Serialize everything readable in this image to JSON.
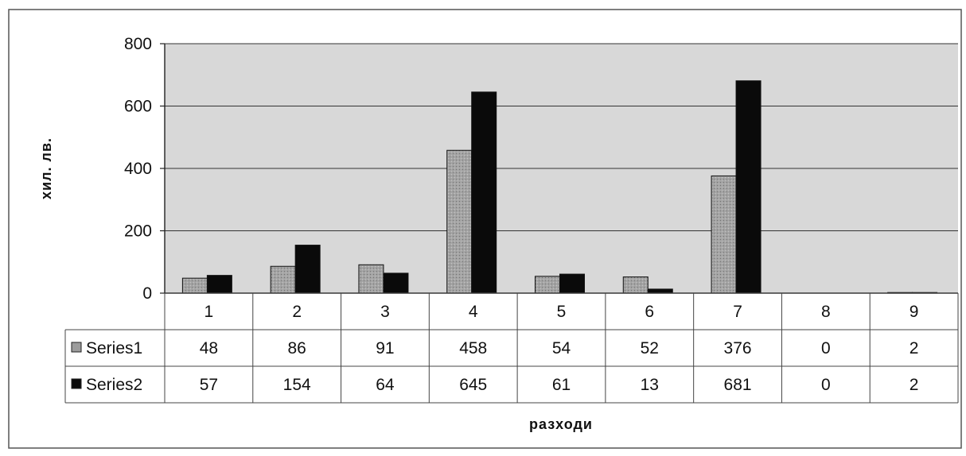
{
  "chart_data": {
    "type": "bar",
    "title": "",
    "xlabel": "разходи",
    "ylabel": "хил. лв.",
    "ylim": [
      0,
      800
    ],
    "yticks": [
      "0",
      "200",
      "400",
      "600",
      "800"
    ],
    "grid": true,
    "legend": "data-table",
    "categories": [
      "1",
      "2",
      "3",
      "4",
      "5",
      "6",
      "7",
      "8",
      "9"
    ],
    "series": [
      {
        "name": "Series1",
        "values": [
          48,
          86,
          91,
          458,
          54,
          52,
          376,
          0,
          2
        ],
        "color": "#9c9c9c"
      },
      {
        "name": "Series2",
        "values": [
          57,
          154,
          64,
          645,
          61,
          13,
          681,
          0,
          2
        ],
        "color": "#0a0a0a"
      }
    ],
    "plot_background": "#d8d8d8"
  }
}
